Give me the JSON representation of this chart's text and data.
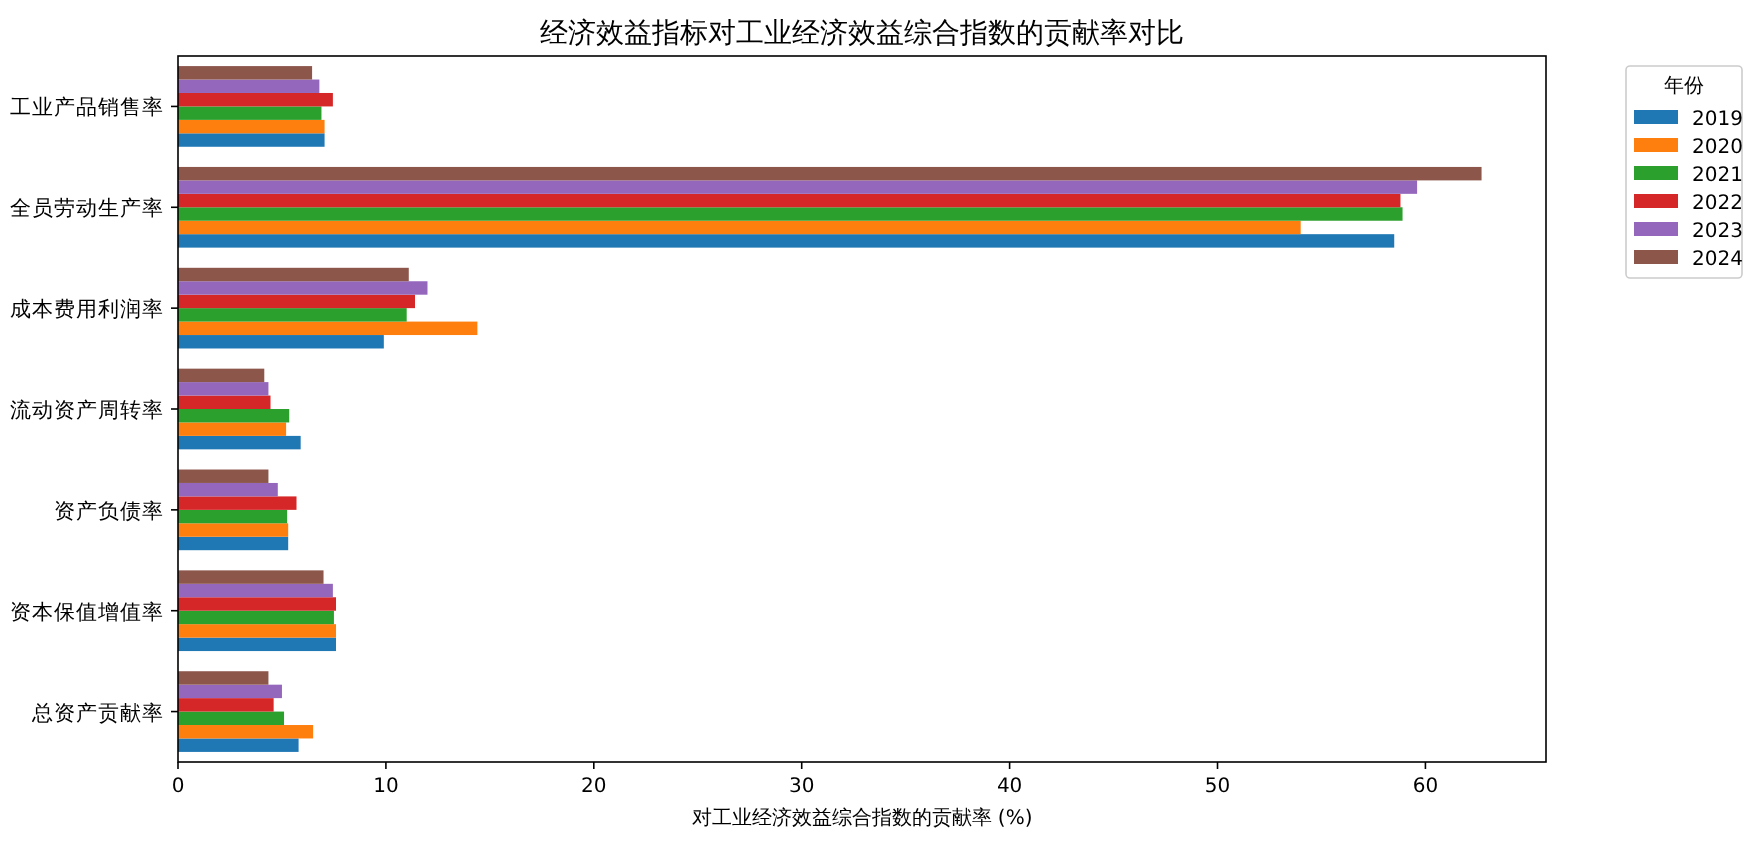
{
  "chart_data": {
    "type": "bar",
    "orientation": "horizontal",
    "title": "经济效益指标对工业经济效益综合指数的贡献率对比",
    "xlabel": "对工业经济效益综合指数的贡献率 (%)",
    "legend_title": "年份",
    "legend": "top right",
    "grid": false,
    "categories": [
      "工业产品销售率",
      "全员劳动生产率",
      "成本费用利润率",
      "流动资产周转率",
      "资产负债率",
      "资本保值增值率",
      "总资产贡献率"
    ],
    "xlim": [
      0,
      65.8
    ],
    "xticks": [
      0,
      10,
      20,
      30,
      40,
      50,
      60
    ],
    "series": [
      {
        "name": "2019",
        "color": "#1f77b4",
        "values": [
          7.05,
          58.5,
          9.9,
          5.9,
          5.3,
          7.6,
          5.8
        ]
      },
      {
        "name": "2020",
        "color": "#ff7f0e",
        "values": [
          7.05,
          54.0,
          14.4,
          5.2,
          5.3,
          7.6,
          6.5
        ]
      },
      {
        "name": "2021",
        "color": "#2ca02c",
        "values": [
          6.9,
          58.9,
          11.0,
          5.35,
          5.25,
          7.5,
          5.1
        ]
      },
      {
        "name": "2022",
        "color": "#d62728",
        "values": [
          7.45,
          58.8,
          11.4,
          4.45,
          5.7,
          7.6,
          4.6
        ]
      },
      {
        "name": "2023",
        "color": "#9467bd",
        "values": [
          6.8,
          59.6,
          12.0,
          4.35,
          4.8,
          7.45,
          5.0
        ]
      },
      {
        "name": "2024",
        "color": "#8c564b",
        "values": [
          6.45,
          62.7,
          11.1,
          4.15,
          4.35,
          7.0,
          4.35
        ]
      }
    ]
  }
}
